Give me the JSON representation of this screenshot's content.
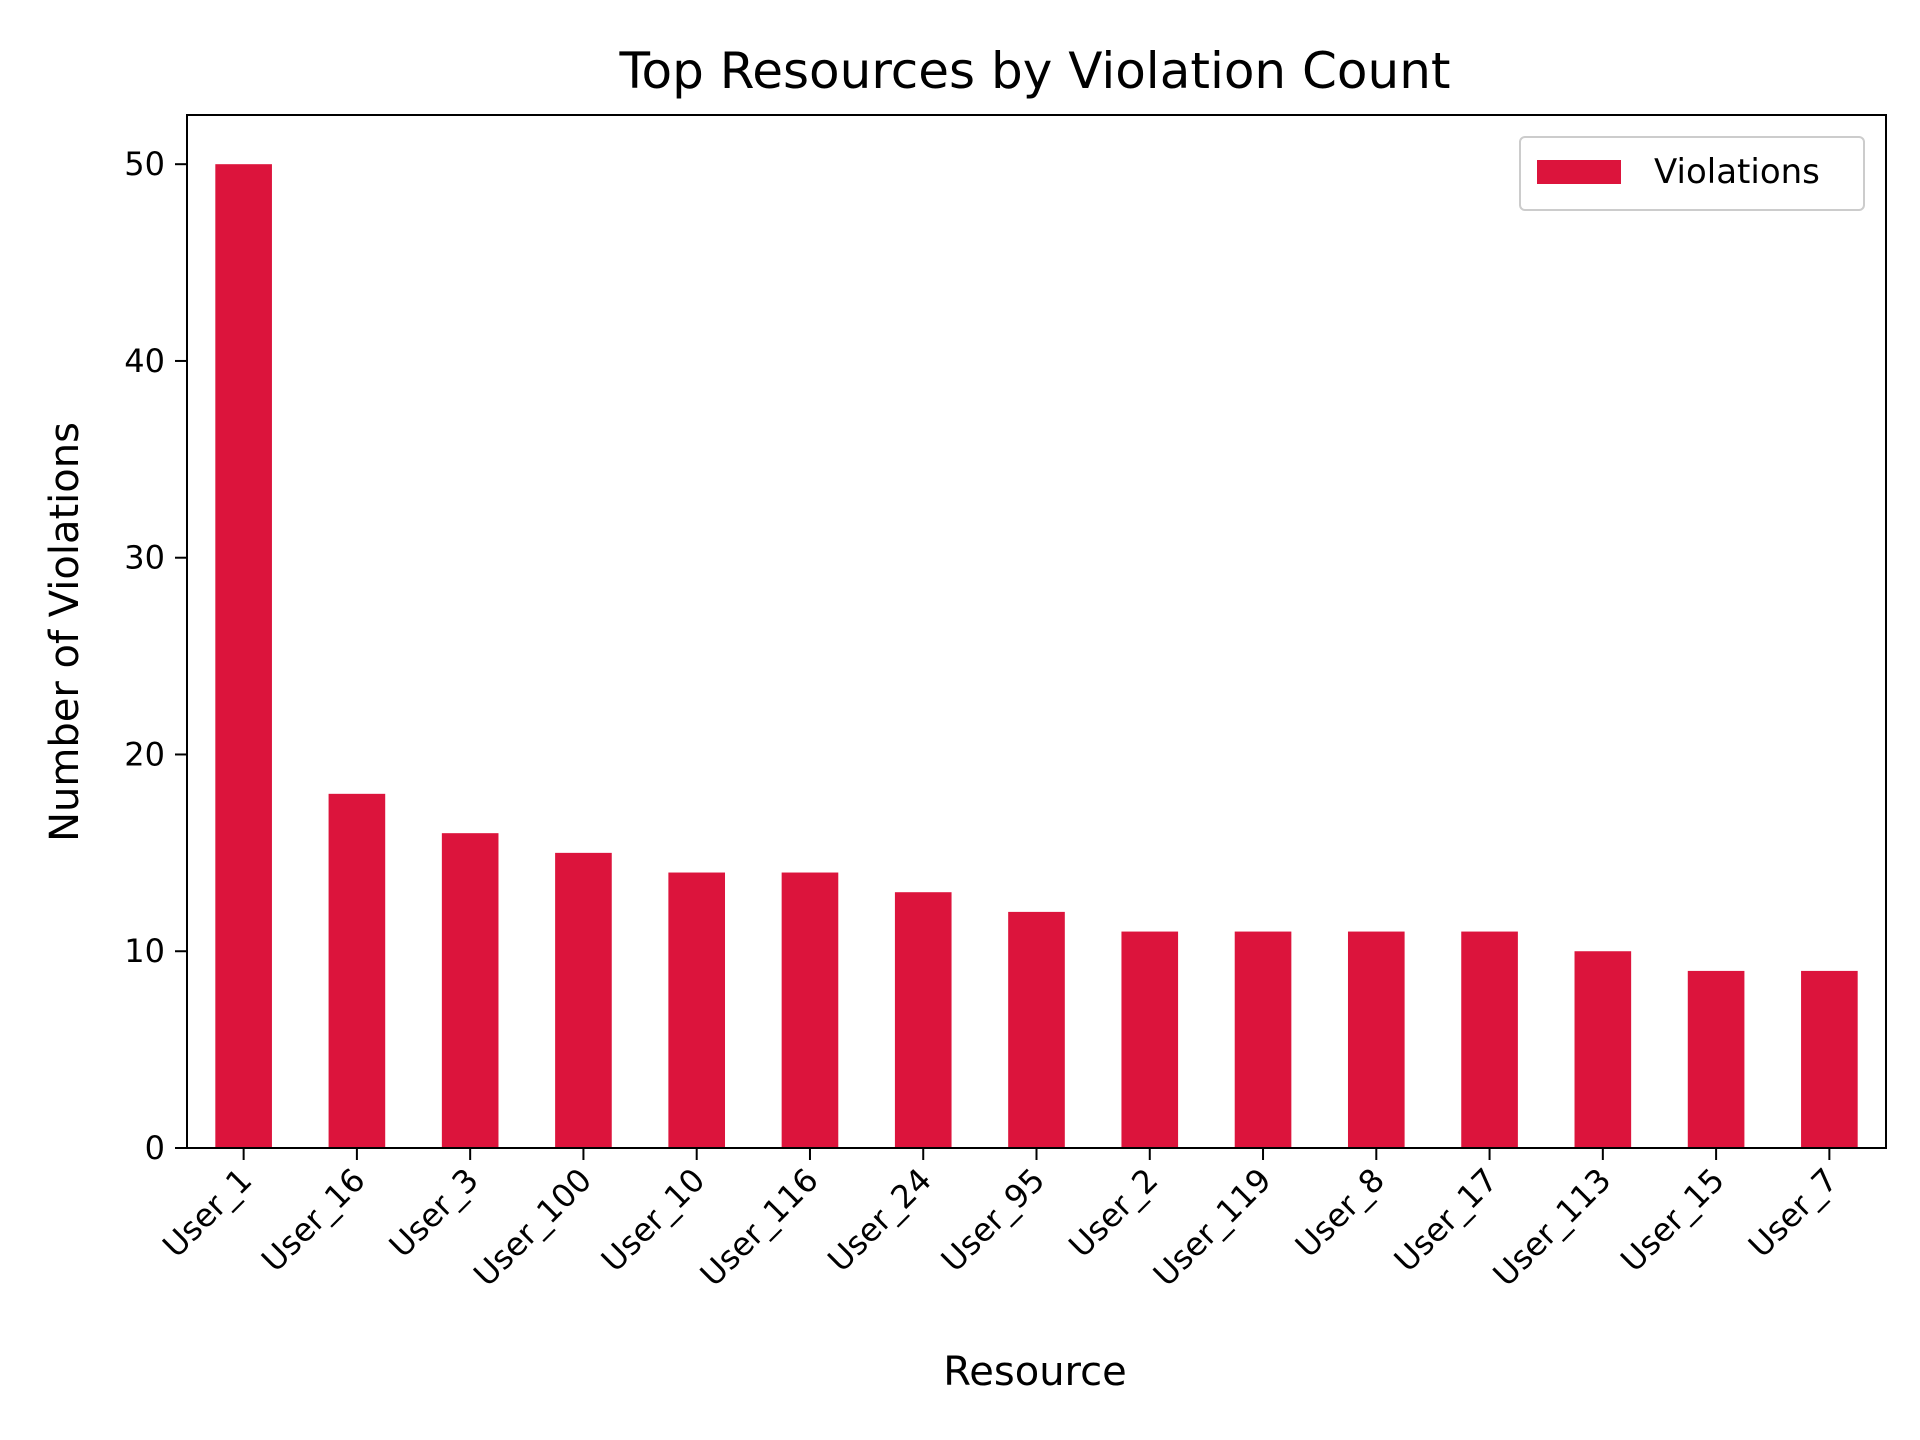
{
  "chart_data": {
    "type": "bar",
    "title": "Top Resources by Violation Count",
    "xlabel": "Resource",
    "ylabel": "Number of Violations",
    "categories": [
      "User_1",
      "User_16",
      "User_3",
      "User_100",
      "User_10",
      "User_116",
      "User_24",
      "User_95",
      "User_2",
      "User_119",
      "User_8",
      "User_17",
      "User_113",
      "User_15",
      "User_7"
    ],
    "series": [
      {
        "name": "Violations",
        "values": [
          50,
          18,
          16,
          15,
          14,
          14,
          13,
          12,
          11,
          11,
          11,
          11,
          10,
          9,
          9
        ],
        "color": "#dc143c"
      }
    ],
    "ylim": [
      0,
      52.5
    ],
    "yticks": [
      0,
      10,
      20,
      30,
      40,
      50
    ],
    "grid": false,
    "legend_position": "top-right"
  }
}
